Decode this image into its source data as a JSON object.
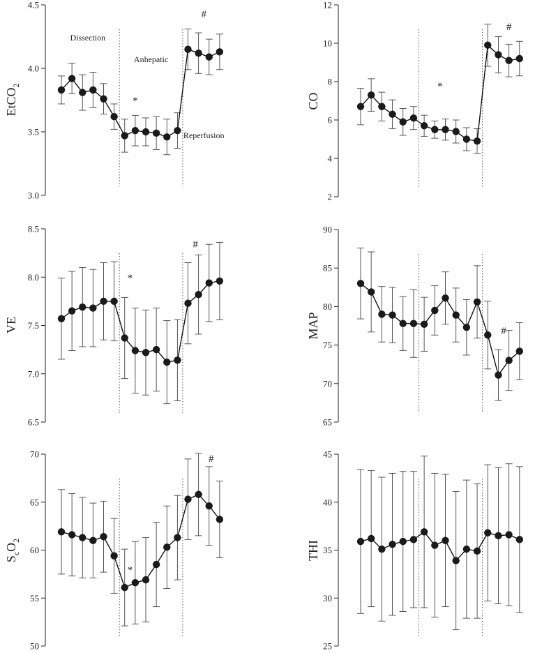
{
  "chart_data": [
    {
      "type": "line",
      "ylabel": "EtCO",
      "ylabel_sub": "2",
      "ylim": [
        3.0,
        4.5
      ],
      "yticks": [
        "3.0",
        "3.5",
        "4.0",
        "4.5"
      ],
      "x": [
        1,
        2,
        3,
        4,
        5,
        6,
        7,
        8,
        9,
        10,
        11,
        12,
        13,
        14,
        15,
        16,
        17
      ],
      "y": [
        3.83,
        3.92,
        3.81,
        3.83,
        3.76,
        3.62,
        3.47,
        3.51,
        3.5,
        3.49,
        3.46,
        3.51,
        4.15,
        4.12,
        4.09,
        4.13,
        null
      ],
      "err": [
        0.11,
        0.12,
        0.14,
        0.14,
        0.12,
        0.1,
        0.13,
        0.12,
        0.11,
        0.13,
        0.14,
        0.14,
        0.16,
        0.16,
        0.14,
        0.14,
        null
      ],
      "separators": [
        6.5,
        12.5
      ],
      "annotations": [
        {
          "text": "Dissection",
          "x": 3.5,
          "y": 4.22
        },
        {
          "text": "Anhepatic",
          "x": 9.5,
          "y": 4.05
        },
        {
          "text": "Reperfusion",
          "x": 14.5,
          "y": 3.45
        }
      ],
      "marks": [
        {
          "text": "*",
          "x": 8,
          "y": 3.72
        },
        {
          "text": "#",
          "x": 14.5,
          "y": 4.4
        }
      ]
    },
    {
      "type": "line",
      "ylabel": "CO",
      "ylabel_sub": "",
      "ylim": [
        2,
        12
      ],
      "yticks": [
        "2",
        "4",
        "6",
        "8",
        "10",
        "12"
      ],
      "x": [
        1,
        2,
        3,
        4,
        5,
        6,
        7,
        8,
        9,
        10,
        11,
        12,
        13,
        14,
        15,
        16,
        17
      ],
      "y": [
        6.7,
        7.3,
        6.7,
        6.3,
        5.9,
        6.1,
        5.7,
        5.5,
        5.5,
        5.4,
        5.0,
        4.9,
        9.9,
        9.4,
        9.1,
        9.2,
        null
      ],
      "err": [
        0.95,
        0.85,
        0.75,
        0.75,
        0.7,
        0.6,
        0.55,
        0.45,
        0.55,
        0.6,
        0.6,
        0.65,
        1.1,
        0.95,
        0.85,
        0.9,
        null
      ],
      "separators": [
        6.5,
        12.5
      ],
      "annotations": [],
      "marks": [
        {
          "text": "*",
          "x": 8.5,
          "y": 7.6
        },
        {
          "text": "#",
          "x": 15,
          "y": 10.7
        }
      ]
    },
    {
      "type": "line",
      "ylabel": "VE",
      "ylabel_sub": "",
      "ylim": [
        6.5,
        8.5
      ],
      "yticks": [
        "6.5",
        "7.0",
        "7.5",
        "8.0",
        "8.5"
      ],
      "x": [
        1,
        2,
        3,
        4,
        5,
        6,
        7,
        8,
        9,
        10,
        11,
        12,
        13,
        14,
        15,
        16,
        17
      ],
      "y": [
        7.57,
        7.65,
        7.69,
        7.68,
        7.75,
        7.75,
        7.37,
        7.24,
        7.22,
        7.25,
        7.12,
        7.14,
        7.73,
        7.82,
        7.94,
        7.96,
        null
      ],
      "err": [
        0.42,
        0.41,
        0.41,
        0.4,
        0.4,
        0.41,
        0.42,
        0.44,
        0.44,
        0.43,
        0.43,
        0.42,
        0.42,
        0.41,
        0.4,
        0.4,
        null
      ],
      "separators": [
        6.5,
        12.5
      ],
      "annotations": [],
      "marks": [
        {
          "text": "*",
          "x": 7.5,
          "y": 7.96
        },
        {
          "text": "#",
          "x": 13.7,
          "y": 8.31
        }
      ]
    },
    {
      "type": "line",
      "ylabel": "MAP",
      "ylabel_sub": "",
      "ylim": [
        65,
        90
      ],
      "yticks": [
        "65",
        "70",
        "75",
        "80",
        "85",
        "90"
      ],
      "x": [
        1,
        2,
        3,
        4,
        5,
        6,
        7,
        8,
        9,
        10,
        11,
        12,
        13,
        14,
        15,
        16,
        17
      ],
      "y": [
        83.0,
        81.9,
        79.0,
        78.9,
        77.8,
        77.8,
        77.7,
        79.5,
        81.1,
        78.9,
        77.3,
        80.6,
        76.3,
        71.1,
        73.0,
        74.2,
        null
      ],
      "err": [
        4.6,
        5.2,
        3.6,
        3.6,
        3.5,
        4.4,
        3.5,
        3.2,
        3.4,
        3.5,
        3.6,
        4.7,
        4.4,
        3.3,
        3.9,
        3.7,
        null
      ],
      "separators": [
        6.5,
        12.5
      ],
      "annotations": [],
      "marks": [
        {
          "text": "#",
          "x": 14.5,
          "y": 76.4
        }
      ]
    },
    {
      "type": "line",
      "ylabel": "S",
      "ylabel_sub": "c",
      "ylabel_tail": "O",
      "ylabel_tail_sub": "2",
      "ylim": [
        50,
        70
      ],
      "yticks": [
        "50",
        "55",
        "60",
        "65",
        "70"
      ],
      "x": [
        1,
        2,
        3,
        4,
        5,
        6,
        7,
        8,
        9,
        10,
        11,
        12,
        13,
        14,
        15,
        16,
        17
      ],
      "y": [
        61.9,
        61.6,
        61.3,
        61.0,
        61.4,
        59.4,
        56.1,
        56.6,
        56.9,
        58.5,
        60.3,
        61.3,
        65.3,
        65.8,
        64.6,
        63.2,
        null
      ],
      "err": [
        4.4,
        4.3,
        4.2,
        3.9,
        3.7,
        3.9,
        4.0,
        4.3,
        4.4,
        4.4,
        4.3,
        4.4,
        4.2,
        4.3,
        4.1,
        4.0,
        null
      ],
      "separators": [
        6.5,
        12.5
      ],
      "annotations": [],
      "marks": [
        {
          "text": "*",
          "x": 7.5,
          "y": 57.6
        },
        {
          "text": "#",
          "x": 15.2,
          "y": 69.2
        }
      ]
    },
    {
      "type": "line",
      "ylabel": "THI",
      "ylabel_sub": "",
      "ylim": [
        25,
        45
      ],
      "yticks": [
        "25",
        "30",
        "35",
        "40",
        "45"
      ],
      "x": [
        1,
        2,
        3,
        4,
        5,
        6,
        7,
        8,
        9,
        10,
        11,
        12,
        13,
        14,
        15,
        16,
        17
      ],
      "y": [
        35.9,
        36.2,
        35.1,
        35.6,
        35.9,
        36.1,
        36.9,
        35.5,
        36.0,
        33.9,
        35.1,
        34.9,
        36.8,
        36.5,
        36.6,
        36.1,
        null
      ],
      "err": [
        7.5,
        7.1,
        7.5,
        7.4,
        7.3,
        7.1,
        7.9,
        7.5,
        6.9,
        7.2,
        7.2,
        7.0,
        7.1,
        7.1,
        7.4,
        7.6,
        null
      ],
      "separators": [
        6.5,
        12.5
      ],
      "annotations": [],
      "marks": []
    }
  ]
}
